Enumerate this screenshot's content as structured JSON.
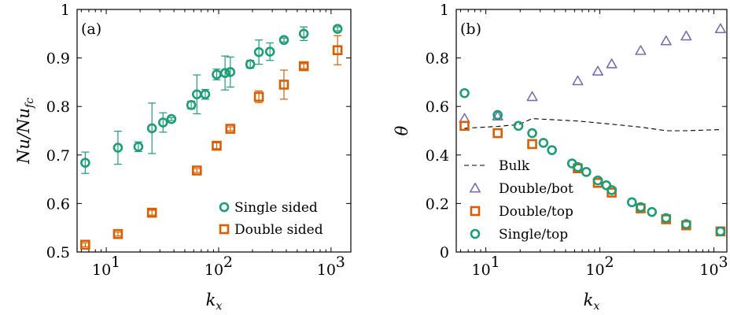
{
  "colors": {
    "green": "#1b9e77",
    "orange": "#d95f02",
    "purple": "#7570b3",
    "black": "#000000"
  },
  "chart_data": [
    {
      "type": "scatter",
      "panel_label": "(a)",
      "xscale": "log",
      "xlim": [
        5.5,
        1500
      ],
      "ylim": [
        0.5,
        1.0
      ],
      "xlabel": "k_x",
      "ylabel": "Nu/Nu_fc",
      "x_tick_labels": [
        {
          "value": 10,
          "base": "10",
          "exp": "1"
        },
        {
          "value": 100,
          "base": "10",
          "exp": "2"
        },
        {
          "value": 1000,
          "base": "10",
          "exp": "3"
        }
      ],
      "y_ticks": [
        0.5,
        0.6,
        0.7,
        0.8,
        0.9,
        1.0
      ],
      "y_tick_labels": [
        "0.5",
        "0.6",
        "0.7",
        "0.8",
        "0.9",
        "1"
      ],
      "legend_position": "bottom-right",
      "series": [
        {
          "name": "Single sided",
          "marker": "circle",
          "color": "#1b9e77",
          "x": [
            6.5,
            12.7,
            19.3,
            25.5,
            32,
            38,
            57,
            64,
            76,
            96,
            114,
            127,
            191,
            228,
            286,
            381,
            572,
            1143
          ],
          "y": [
            0.684,
            0.715,
            0.717,
            0.755,
            0.767,
            0.774,
            0.803,
            0.825,
            0.825,
            0.866,
            0.869,
            0.871,
            0.887,
            0.912,
            0.913,
            0.937,
            0.95,
            0.96
          ],
          "err": [
            0.022,
            0.034,
            0.01,
            0.052,
            0.02,
            0.003,
            0.008,
            0.04,
            0.01,
            0.011,
            0.035,
            0.031,
            0.008,
            0.025,
            0.018,
            0.004,
            0.014,
            0.004
          ]
        },
        {
          "name": "Double sided",
          "marker": "square",
          "color": "#d95f02",
          "x": [
            6.5,
            12.7,
            25.5,
            64,
            96,
            127,
            228,
            381,
            572,
            1143
          ],
          "y": [
            0.515,
            0.537,
            0.581,
            0.668,
            0.719,
            0.754,
            0.82,
            0.845,
            0.883,
            0.916
          ],
          "err": [
            0.004,
            0.004,
            0.005,
            0.004,
            0.006,
            0.004,
            0.012,
            0.03,
            0.005,
            0.03
          ]
        }
      ]
    },
    {
      "type": "scatter",
      "panel_label": "(b)",
      "xscale": "log",
      "xlim": [
        5.5,
        1300
      ],
      "ylim": [
        0,
        1.0
      ],
      "xlabel": "k_x",
      "ylabel": "θ",
      "x_tick_labels": [
        {
          "value": 10,
          "base": "10",
          "exp": "1"
        },
        {
          "value": 100,
          "base": "10",
          "exp": "2"
        },
        {
          "value": 1000,
          "base": "10",
          "exp": "3"
        }
      ],
      "y_ticks": [
        0,
        0.2,
        0.4,
        0.6,
        0.8,
        1.0
      ],
      "y_tick_labels": [
        "0",
        "0.2",
        "0.4",
        "0.6",
        "0.8",
        "1"
      ],
      "legend_position": "bottom-left",
      "series": [
        {
          "name": "Bulk",
          "marker": "dashed-line",
          "color": "#000000",
          "x": [
            6.5,
            12.7,
            19.3,
            25.5,
            64,
            127,
            228,
            381,
            572,
            1143
          ],
          "y": [
            0.51,
            0.518,
            0.525,
            0.55,
            0.54,
            0.527,
            0.515,
            0.5,
            0.5,
            0.505
          ]
        },
        {
          "name": "Double/bot",
          "marker": "triangle",
          "color": "#7570b3",
          "x": [
            6.5,
            12.7,
            25.5,
            64,
            96,
            127,
            228,
            381,
            572,
            1143
          ],
          "y": [
            0.55,
            0.56,
            0.64,
            0.705,
            0.745,
            0.775,
            0.83,
            0.87,
            0.89,
            0.92
          ]
        },
        {
          "name": "Double/top",
          "marker": "square",
          "color": "#d95f02",
          "x": [
            6.5,
            12.7,
            25.5,
            64,
            96,
            127,
            228,
            381,
            572,
            1143
          ],
          "y": [
            0.52,
            0.49,
            0.445,
            0.345,
            0.285,
            0.245,
            0.18,
            0.135,
            0.11,
            0.085
          ]
        },
        {
          "name": "Single/top",
          "marker": "circle",
          "color": "#1b9e77",
          "x": [
            6.5,
            12.7,
            19.3,
            25.5,
            32,
            38,
            57,
            64,
            76,
            96,
            114,
            127,
            191,
            228,
            286,
            381,
            572,
            1143
          ],
          "y": [
            0.655,
            0.565,
            0.52,
            0.49,
            0.45,
            0.42,
            0.365,
            0.35,
            0.33,
            0.295,
            0.275,
            0.255,
            0.205,
            0.185,
            0.165,
            0.14,
            0.115,
            0.085
          ]
        }
      ]
    }
  ]
}
